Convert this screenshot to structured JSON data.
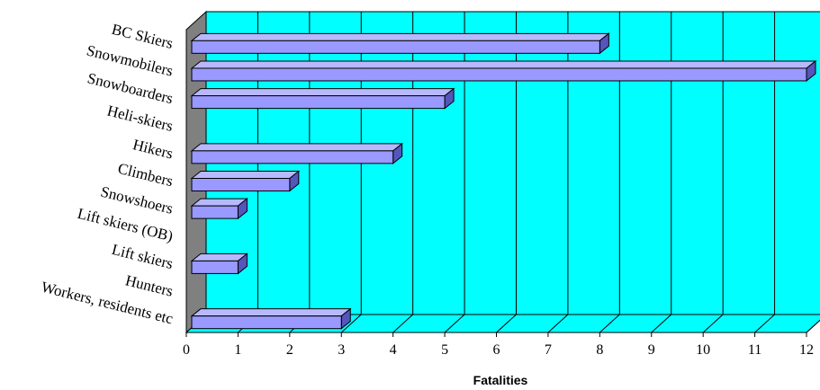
{
  "chart_data": {
    "type": "bar",
    "orientation": "horizontal",
    "categories": [
      "BC Skiers",
      "Snowmobilers",
      "Snowboarders",
      "Heli-skiers",
      "Hikers",
      "Climbers",
      "Snowshoers",
      "Lift skiers (OB)",
      "Lift skiers",
      "Hunters",
      "Workers, residents etc"
    ],
    "values": [
      8,
      12,
      5,
      0,
      4,
      2,
      1,
      0,
      1,
      0,
      3
    ],
    "title": "",
    "xlabel": "Fatalities",
    "ylabel": "",
    "xlim": [
      0,
      12
    ],
    "x_ticks": [
      "0",
      "1",
      "2",
      "3",
      "4",
      "5",
      "6",
      "7",
      "8",
      "9",
      "10",
      "11",
      "12"
    ],
    "grid": true,
    "legend": "none",
    "style": "3d",
    "colors": {
      "plot_background": "#00ffff",
      "wall": "#808080",
      "bar_front": "#9999ff",
      "bar_top": "#b8b8ff",
      "bar_side": "#5555bb",
      "bar_outline": "#000000",
      "gridline": "#000000"
    }
  }
}
